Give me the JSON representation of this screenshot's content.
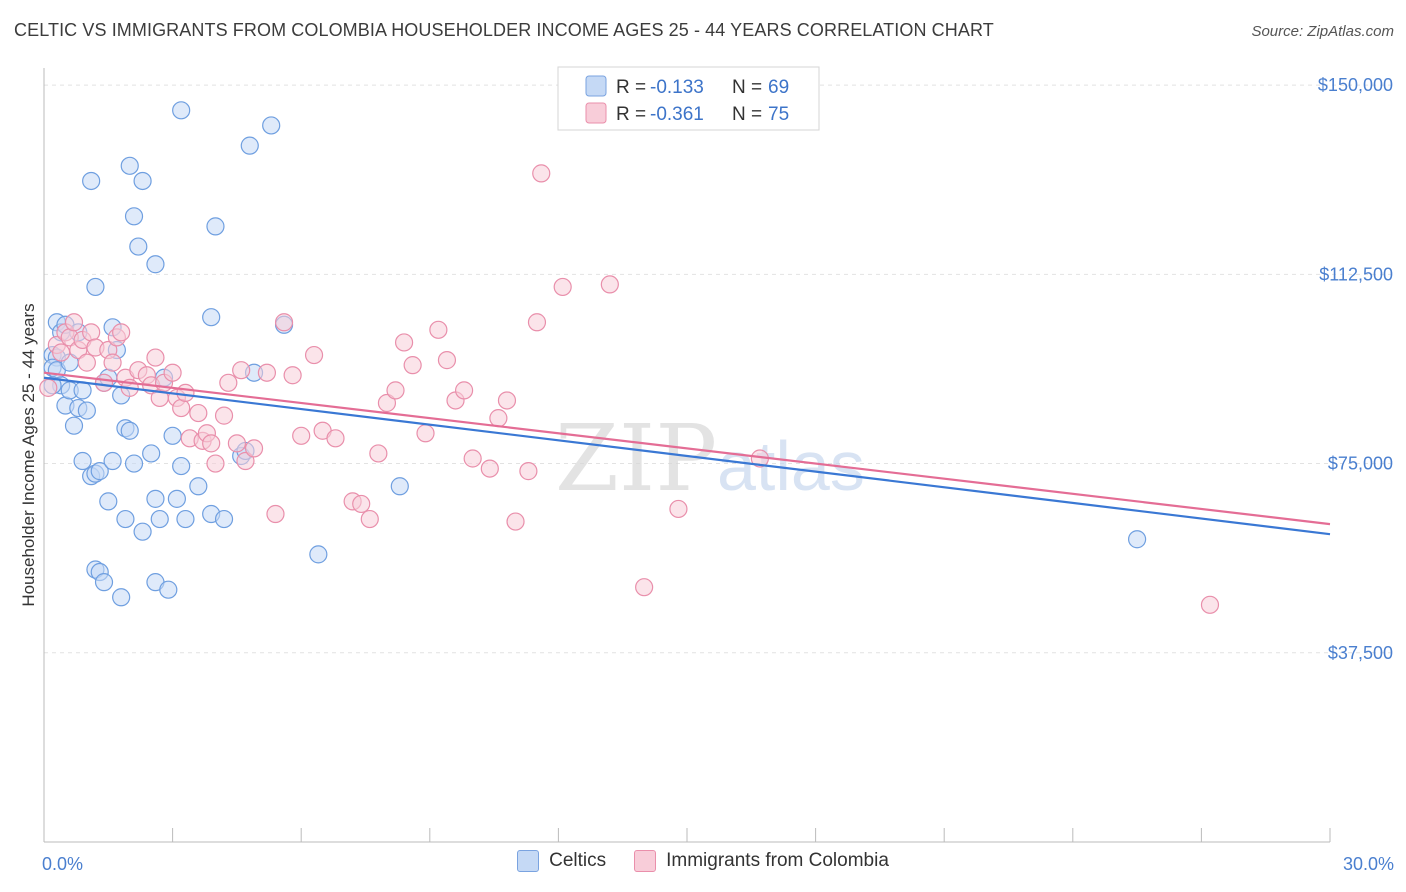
{
  "header": {
    "title": "CELTIC VS IMMIGRANTS FROM COLOMBIA HOUSEHOLDER INCOME AGES 25 - 44 YEARS CORRELATION CHART",
    "source": "Source: ZipAtlas.com"
  },
  "watermark": {
    "zip": "ZIP",
    "atlas": "atlas"
  },
  "legend": {
    "blue": {
      "r_label": "R = ",
      "r_value": "-0.133",
      "n_label": "N = ",
      "n_value": "69"
    },
    "pink": {
      "r_label": "R = ",
      "r_value": "-0.361",
      "n_label": "N = ",
      "n_value": "75"
    }
  },
  "bottom_legend": {
    "series1": "Celtics",
    "series2": "Immigrants from Colombia"
  },
  "colors": {
    "blue_fill": "#c5d9f5",
    "blue_stroke": "#6f9fe0",
    "blue_line": "#3a78d4",
    "pink_fill": "#f8cdd9",
    "pink_stroke": "#e98fab",
    "pink_line": "#e46d95",
    "tick_text": "#4a7fcf",
    "grid": "#e2e2e2"
  },
  "chart_data": {
    "type": "scatter",
    "ylabel": "Householder Income Ages 25 - 44 years",
    "xlim": [
      0,
      30
    ],
    "ylim": [
      0,
      152000
    ],
    "x_tick_labels": [
      "0.0%",
      "30.0%"
    ],
    "y_ticks": [
      37500,
      75000,
      112500,
      150000
    ],
    "y_tick_labels": [
      "$37,500",
      "$75,000",
      "$112,500",
      "$150,000"
    ],
    "grid": true,
    "legend_position": "top-center",
    "series": [
      {
        "name": "Celtics",
        "color": "blue",
        "trend": {
          "x": [
            0,
            30
          ],
          "y": [
            92000,
            61000
          ]
        },
        "points": [
          [
            0.2,
            96500
          ],
          [
            0.3,
            96000
          ],
          [
            0.2,
            94000
          ],
          [
            0.3,
            93500
          ],
          [
            0.4,
            90500
          ],
          [
            0.3,
            103000
          ],
          [
            0.4,
            101000
          ],
          [
            0.5,
            102500
          ],
          [
            0.6,
            95000
          ],
          [
            0.5,
            86500
          ],
          [
            0.6,
            89500
          ],
          [
            0.7,
            82500
          ],
          [
            0.8,
            101000
          ],
          [
            0.8,
            86000
          ],
          [
            0.9,
            75500
          ],
          [
            0.9,
            89500
          ],
          [
            1.0,
            85500
          ],
          [
            1.1,
            72500
          ],
          [
            1.2,
            110000
          ],
          [
            1.2,
            73000
          ],
          [
            1.3,
            73500
          ],
          [
            1.4,
            91000
          ],
          [
            1.5,
            67500
          ],
          [
            1.6,
            75500
          ],
          [
            1.6,
            102000
          ],
          [
            1.7,
            97500
          ],
          [
            1.8,
            88500
          ],
          [
            1.9,
            64000
          ],
          [
            1.9,
            82000
          ],
          [
            2.0,
            81500
          ],
          [
            2.0,
            134000
          ],
          [
            2.1,
            124000
          ],
          [
            2.1,
            75000
          ],
          [
            2.2,
            118000
          ],
          [
            2.3,
            131000
          ],
          [
            2.3,
            61500
          ],
          [
            2.5,
            77000
          ],
          [
            2.6,
            68000
          ],
          [
            2.6,
            114500
          ],
          [
            2.7,
            64000
          ],
          [
            2.8,
            92000
          ],
          [
            3.0,
            80500
          ],
          [
            3.1,
            68000
          ],
          [
            3.2,
            145000
          ],
          [
            3.2,
            74500
          ],
          [
            3.3,
            64000
          ],
          [
            3.6,
            70500
          ],
          [
            3.9,
            65000
          ],
          [
            3.9,
            104000
          ],
          [
            4.0,
            122000
          ],
          [
            4.2,
            64000
          ],
          [
            4.6,
            76500
          ],
          [
            4.7,
            77500
          ],
          [
            4.8,
            138000
          ],
          [
            4.9,
            93000
          ],
          [
            5.3,
            142000
          ],
          [
            5.6,
            102500
          ],
          [
            6.4,
            57000
          ],
          [
            8.3,
            70500
          ],
          [
            1.1,
            131000
          ],
          [
            1.2,
            54000
          ],
          [
            1.3,
            53500
          ],
          [
            1.4,
            51500
          ],
          [
            1.8,
            48500
          ],
          [
            2.6,
            51500
          ],
          [
            2.9,
            50000
          ],
          [
            25.5,
            60000
          ],
          [
            0.2,
            90500
          ],
          [
            1.5,
            92000
          ]
        ]
      },
      {
        "name": "Immigrants from Colombia",
        "color": "pink",
        "trend": {
          "x": [
            0,
            30
          ],
          "y": [
            93000,
            63000
          ]
        },
        "points": [
          [
            0.1,
            90000
          ],
          [
            0.3,
            98500
          ],
          [
            0.4,
            97000
          ],
          [
            0.5,
            101000
          ],
          [
            0.6,
            100000
          ],
          [
            0.7,
            103000
          ],
          [
            0.8,
            97500
          ],
          [
            0.9,
            99500
          ],
          [
            1.0,
            95000
          ],
          [
            1.1,
            101000
          ],
          [
            1.2,
            98000
          ],
          [
            1.4,
            91000
          ],
          [
            1.5,
            97500
          ],
          [
            1.6,
            95000
          ],
          [
            1.7,
            100000
          ],
          [
            1.8,
            101000
          ],
          [
            1.9,
            92000
          ],
          [
            2.0,
            90000
          ],
          [
            2.2,
            93500
          ],
          [
            2.4,
            92500
          ],
          [
            2.5,
            90500
          ],
          [
            2.6,
            96000
          ],
          [
            2.7,
            88000
          ],
          [
            2.8,
            91000
          ],
          [
            3.0,
            93000
          ],
          [
            3.1,
            88000
          ],
          [
            3.2,
            86000
          ],
          [
            3.3,
            89000
          ],
          [
            3.4,
            80000
          ],
          [
            3.6,
            85000
          ],
          [
            3.7,
            79500
          ],
          [
            3.8,
            81000
          ],
          [
            3.9,
            79000
          ],
          [
            4.0,
            75000
          ],
          [
            4.2,
            84500
          ],
          [
            4.3,
            91000
          ],
          [
            4.5,
            79000
          ],
          [
            4.6,
            93500
          ],
          [
            4.7,
            75500
          ],
          [
            4.9,
            78000
          ],
          [
            5.2,
            93000
          ],
          [
            5.4,
            65000
          ],
          [
            5.6,
            103000
          ],
          [
            5.8,
            92500
          ],
          [
            6.0,
            80500
          ],
          [
            6.3,
            96500
          ],
          [
            6.5,
            81500
          ],
          [
            6.8,
            80000
          ],
          [
            7.2,
            67500
          ],
          [
            7.4,
            67000
          ],
          [
            7.6,
            64000
          ],
          [
            7.8,
            77000
          ],
          [
            8.0,
            87000
          ],
          [
            8.2,
            89500
          ],
          [
            8.4,
            99000
          ],
          [
            8.6,
            94500
          ],
          [
            8.9,
            81000
          ],
          [
            9.2,
            101500
          ],
          [
            9.4,
            95500
          ],
          [
            9.6,
            87500
          ],
          [
            9.8,
            89500
          ],
          [
            10.0,
            76000
          ],
          [
            10.4,
            74000
          ],
          [
            10.6,
            84000
          ],
          [
            10.8,
            87500
          ],
          [
            11.0,
            63500
          ],
          [
            11.3,
            73500
          ],
          [
            11.5,
            103000
          ],
          [
            11.6,
            132500
          ],
          [
            12.1,
            110000
          ],
          [
            13.2,
            110500
          ],
          [
            14.0,
            50500
          ],
          [
            14.8,
            66000
          ],
          [
            16.7,
            76000
          ],
          [
            27.2,
            47000
          ]
        ]
      }
    ]
  }
}
